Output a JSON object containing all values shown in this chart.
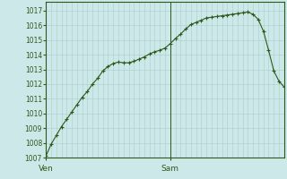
{
  "background_color": "#cce8e8",
  "line_color": "#2d5a1b",
  "marker_color": "#2d5a1b",
  "grid_color": "#aacccc",
  "axis_color": "#2d5a1b",
  "text_color": "#2d5a1b",
  "ylim_min": 1007,
  "ylim_max": 1017.6,
  "yticks": [
    1007,
    1008,
    1009,
    1010,
    1011,
    1012,
    1013,
    1014,
    1015,
    1016,
    1017
  ],
  "ven_x": 0,
  "sam_x": 24,
  "x_values": [
    0,
    1,
    2,
    3,
    4,
    5,
    6,
    7,
    8,
    9,
    10,
    11,
    12,
    13,
    14,
    15,
    16,
    17,
    18,
    19,
    20,
    21,
    22,
    23,
    24,
    25,
    26,
    27,
    28,
    29,
    30,
    31,
    32,
    33,
    34,
    35,
    36,
    37,
    38,
    39,
    40,
    41,
    42,
    43,
    44,
    45,
    46
  ],
  "y_values": [
    1007.1,
    1007.9,
    1008.5,
    1009.1,
    1009.6,
    1010.1,
    1010.6,
    1011.1,
    1011.5,
    1012.0,
    1012.4,
    1012.9,
    1013.2,
    1013.4,
    1013.5,
    1013.45,
    1013.45,
    1013.55,
    1013.7,
    1013.85,
    1014.05,
    1014.2,
    1014.3,
    1014.45,
    1014.75,
    1015.1,
    1015.4,
    1015.75,
    1016.05,
    1016.2,
    1016.35,
    1016.5,
    1016.55,
    1016.6,
    1016.65,
    1016.7,
    1016.75,
    1016.8,
    1016.85,
    1016.9,
    1016.75,
    1016.4,
    1015.6,
    1014.3,
    1012.9,
    1012.2,
    1011.8
  ],
  "xlim_min": 0,
  "xlim_max": 46,
  "ven_label": "Ven",
  "sam_label": "Sam"
}
